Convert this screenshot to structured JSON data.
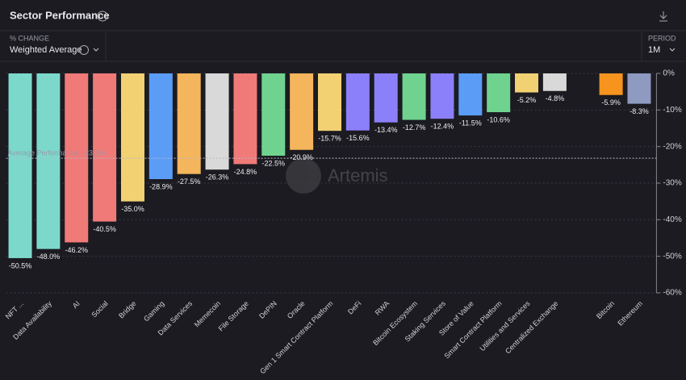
{
  "header": {
    "title": "Sector Performance"
  },
  "controls": {
    "metric_label": "% CHANGE",
    "metric_value": "Weighted Average",
    "period_label": "PERIOD",
    "period_value": "1M"
  },
  "watermark": "Artemis",
  "chart_data": {
    "type": "bar",
    "categories": [
      "NFT ...",
      "Data Availability",
      "AI",
      "Social",
      "Bridge",
      "Gaming",
      "Data Services",
      "Memecoin",
      "File Storage",
      "DePIN",
      "Oracle",
      "Gen 1 Smart Contract Platform",
      "DeFi",
      "RWA",
      "Bitcoin Ecosystem",
      "Staking Services",
      "Store of Value",
      "Smart Contract Platform",
      "Utilities and Services",
      "Centralized Exchange",
      null,
      "Bitcoin",
      "Ethereum"
    ],
    "values": [
      -50.5,
      -48.0,
      -46.2,
      -40.5,
      -35.0,
      -28.9,
      -27.5,
      -26.3,
      -24.8,
      -22.5,
      -20.9,
      -15.7,
      -15.6,
      -13.4,
      -12.7,
      -12.4,
      -11.5,
      -10.6,
      -5.2,
      -4.8,
      null,
      -5.9,
      -8.3
    ],
    "value_labels": [
      "-50.5%",
      "-48.0%",
      "-46.2%",
      "-40.5%",
      "-35.0%",
      "-28.9%",
      "-27.5%",
      "-26.3%",
      "-24.8%",
      "-22.5%",
      "-20.9%",
      "-15.7%",
      "-15.6%",
      "-13.4%",
      "-12.7%",
      "-12.4%",
      "-11.5%",
      "-10.6%",
      "-5.2%",
      "-4.8%",
      null,
      "-5.9%",
      "-8.3%"
    ],
    "colors": [
      "#7dd8cc",
      "#7dd8cc",
      "#f07a78",
      "#f07a78",
      "#f2d173",
      "#5b9cf6",
      "#f4b55c",
      "#d9d9d9",
      "#f07a78",
      "#6fd38f",
      "#f4b55c",
      "#f2d173",
      "#8b80f9",
      "#8b80f9",
      "#6fd38f",
      "#8b80f9",
      "#5b9cf6",
      "#6fd38f",
      "#f2d173",
      "#d9d9d9",
      null,
      "#f7941d",
      "#8e9ac0"
    ],
    "ylim": [
      -60,
      0
    ],
    "yticks": [
      {
        "value": 0,
        "label": "0%"
      },
      {
        "value": -10,
        "label": "-10%"
      },
      {
        "value": -20,
        "label": "-20%"
      },
      {
        "value": -30,
        "label": "-30%"
      },
      {
        "value": -40,
        "label": "-40%"
      },
      {
        "value": -50,
        "label": "-50%"
      },
      {
        "value": -60,
        "label": "-60%"
      }
    ],
    "grid": true,
    "average_line": {
      "value": -23.2,
      "label": "Average Performance: -23.2%"
    }
  }
}
